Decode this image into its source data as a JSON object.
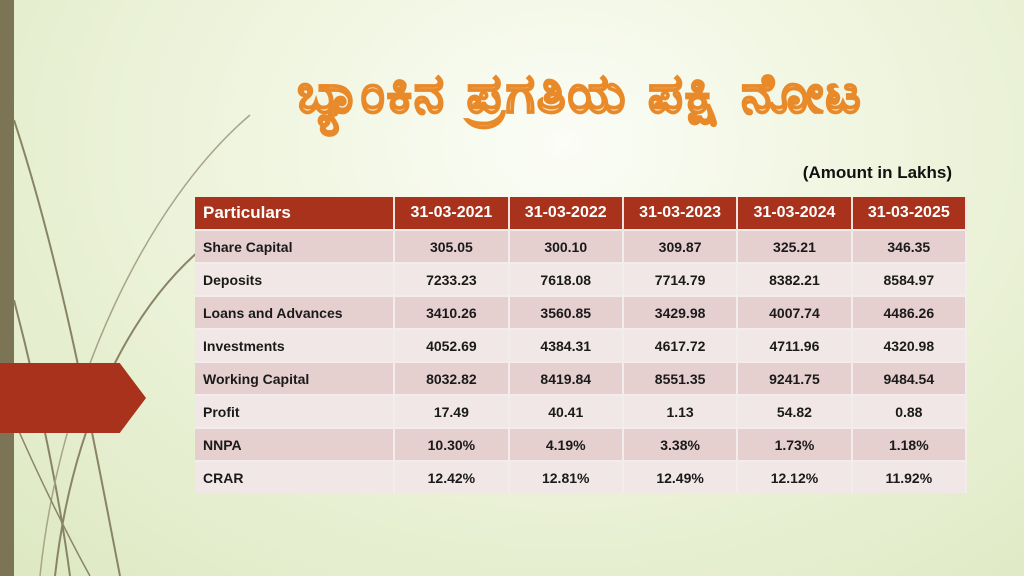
{
  "title": "ಬ್ಯಾಂಕಿನ ಪ್ರಗತಿಯ ಪಕ್ಷಿ ನೋಟ",
  "amount_note": "(Amount in Lakhs)",
  "table": {
    "headers": [
      "Particulars",
      "31-03-2021",
      "31-03-2022",
      "31-03-2023",
      "31-03-2024",
      "31-03-2025"
    ],
    "rows": [
      [
        "Share Capital",
        "305.05",
        "300.10",
        "309.87",
        "325.21",
        "346.35"
      ],
      [
        "Deposits",
        "7233.23",
        "7618.08",
        "7714.79",
        "8382.21",
        "8584.97"
      ],
      [
        "Loans and Advances",
        "3410.26",
        "3560.85",
        "3429.98",
        "4007.74",
        "4486.26"
      ],
      [
        "Investments",
        "4052.69",
        "4384.31",
        "4617.72",
        "4711.96",
        "4320.98"
      ],
      [
        "Working Capital",
        "8032.82",
        "8419.84",
        "8551.35",
        "9241.75",
        "9484.54"
      ],
      [
        "Profit",
        "17.49",
        "40.41",
        "1.13",
        "54.82",
        "0.88"
      ],
      [
        "NNPA",
        "10.30%",
        "4.19%",
        "3.38%",
        "1.73%",
        "1.18%"
      ],
      [
        "CRAR",
        "12.42%",
        "12.81%",
        "12.49%",
        "12.12%",
        "11.92%"
      ]
    ]
  }
}
